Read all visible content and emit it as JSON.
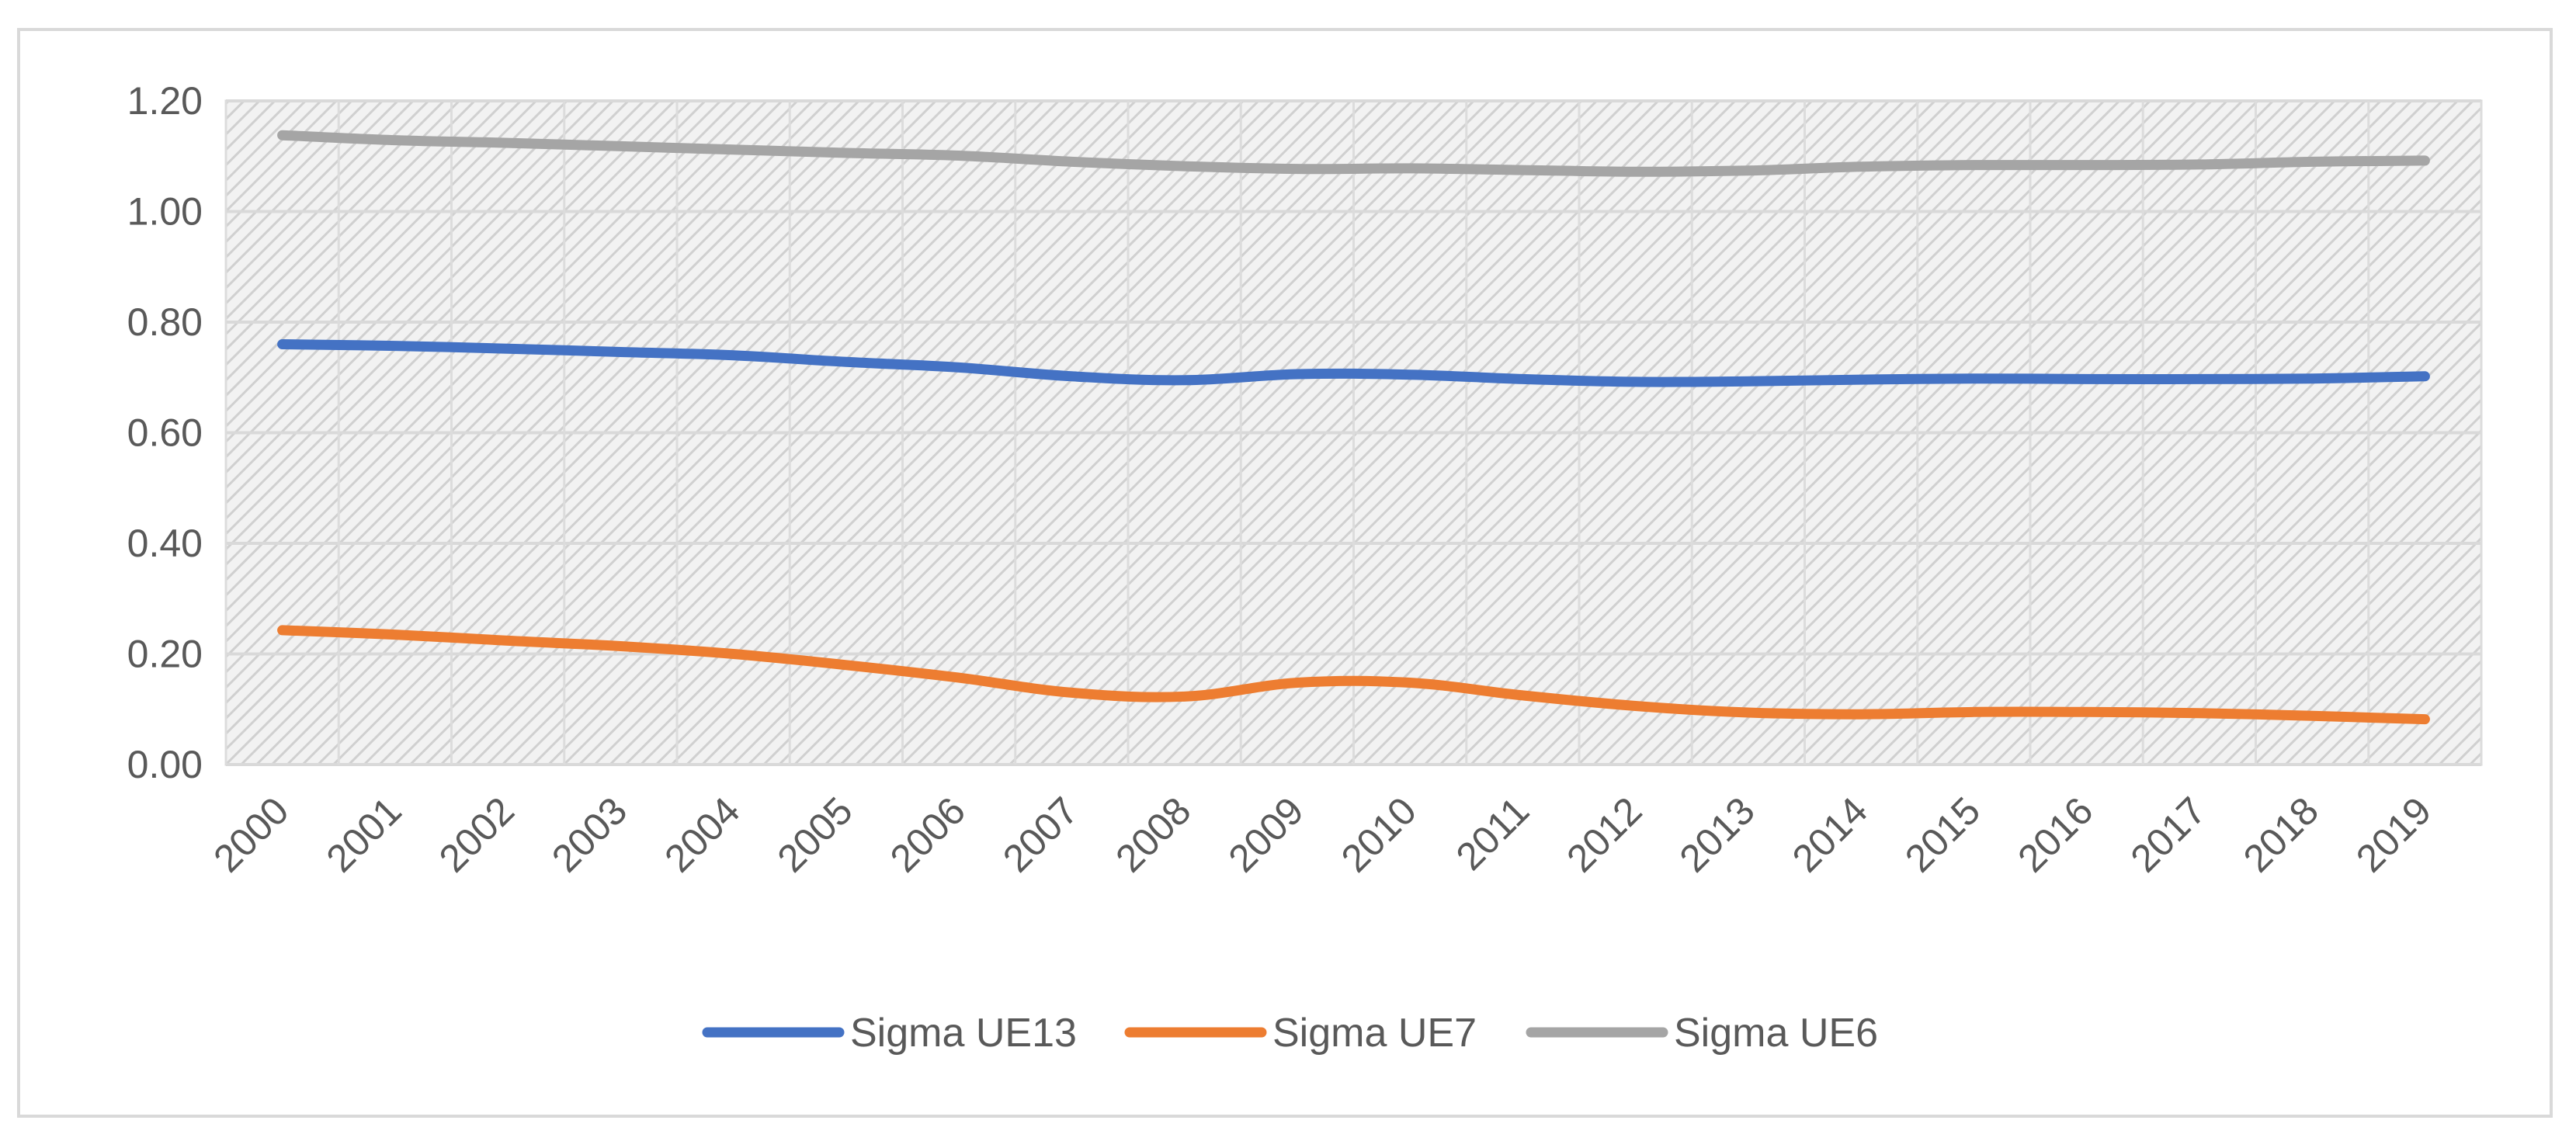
{
  "chart_data": {
    "type": "line",
    "title": "",
    "xlabel": "",
    "ylabel": "",
    "categories": [
      "2000",
      "2001",
      "2002",
      "2003",
      "2004",
      "2005",
      "2006",
      "2007",
      "2008",
      "2009",
      "2010",
      "2011",
      "2012",
      "2013",
      "2014",
      "2015",
      "2016",
      "2017",
      "2018",
      "2019"
    ],
    "ylim": [
      0,
      1.2
    ],
    "yticks": [
      "0.00",
      "0.20",
      "0.40",
      "0.60",
      "0.80",
      "1.00",
      "1.20"
    ],
    "grid": true,
    "legend_position": "bottom",
    "series": [
      {
        "name": "Sigma UE13",
        "color": "#4472c4",
        "values": [
          0.76,
          0.757,
          0.752,
          0.746,
          0.74,
          0.728,
          0.718,
          0.702,
          0.695,
          0.706,
          0.705,
          0.697,
          0.692,
          0.693,
          0.696,
          0.698,
          0.697,
          0.697,
          0.698,
          0.702
        ]
      },
      {
        "name": "Sigma UE7",
        "color": "#ed7d31",
        "values": [
          0.243,
          0.235,
          0.224,
          0.214,
          0.2,
          0.18,
          0.157,
          0.13,
          0.123,
          0.148,
          0.148,
          0.125,
          0.106,
          0.094,
          0.091,
          0.095,
          0.095,
          0.093,
          0.088,
          0.082
        ]
      },
      {
        "name": "Sigma UE6",
        "color": "#a5a5a5",
        "values": [
          1.138,
          1.129,
          1.124,
          1.118,
          1.112,
          1.106,
          1.101,
          1.09,
          1.082,
          1.077,
          1.078,
          1.075,
          1.072,
          1.074,
          1.081,
          1.084,
          1.084,
          1.085,
          1.09,
          1.092
        ]
      }
    ]
  }
}
